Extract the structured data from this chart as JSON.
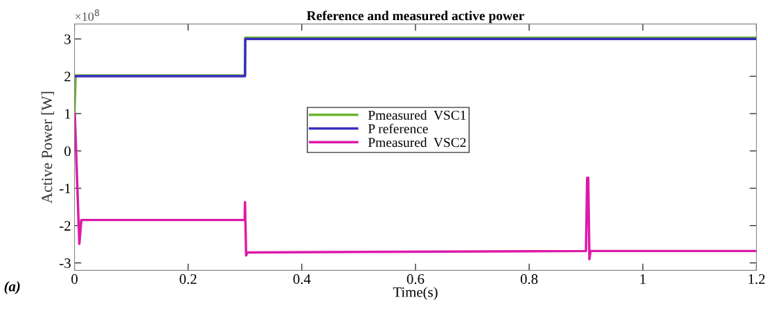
{
  "chart_data": {
    "type": "line",
    "title": "Reference and measured active power",
    "xlabel": "Time(s)",
    "ylabel": "Active Power [W]",
    "annotations": [
      "×10$^{8}$",
      "(a)"
    ],
    "xlim": [
      0,
      1.2
    ],
    "xticks": [
      0,
      0.2,
      0.4,
      0.6,
      0.8,
      1,
      1.2
    ],
    "ylim": [
      -3.2,
      3.4
    ],
    "yticks": [
      -3,
      -2,
      -1,
      0,
      1,
      2,
      3
    ],
    "grid": false,
    "legend": "center",
    "marker": "none",
    "line_style": "solid",
    "series": [
      {
        "name": "Pmeasured  VSC1",
        "color": "#6ab42d",
        "x": [
          0,
          0.002,
          0.3,
          0.3005,
          1.2
        ],
        "values": [
          1.0,
          2.02,
          2.02,
          3.03,
          3.03
        ]
      },
      {
        "name": "P reference",
        "color": "#3a2fc0",
        "x": [
          0,
          0.3,
          0.3005,
          1.2
        ],
        "values": [
          2.0,
          2.0,
          3.0,
          3.0
        ]
      },
      {
        "name": "Pmeasured  VSC2",
        "color": "#dd1aa8",
        "x": [
          0,
          0.0005,
          0.0085,
          0.012,
          0.2995,
          0.3,
          0.302,
          0.304,
          0.9,
          0.902,
          0.904,
          0.906,
          0.908,
          0.91,
          1.2
        ],
        "values": [
          0.0,
          1.0,
          -2.49,
          -1.85,
          -1.85,
          -1.37,
          -2.8,
          -2.72,
          -2.68,
          -0.72,
          -0.72,
          -2.9,
          -2.68,
          -2.68,
          -2.68
        ]
      }
    ]
  }
}
